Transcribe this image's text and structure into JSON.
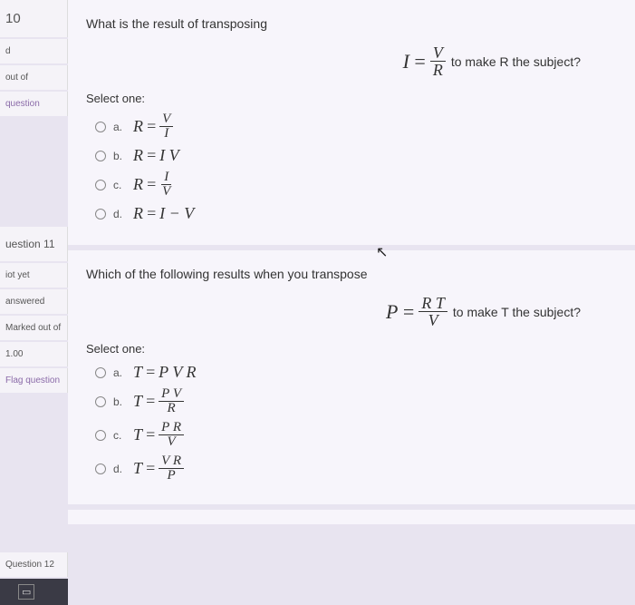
{
  "q10": {
    "number": "10",
    "status_lines": [
      "d",
      "out of"
    ],
    "flag": "question",
    "prompt": "What is the result of transposing",
    "formula_display": {
      "lhs": "I",
      "eq": "=",
      "num": "V",
      "den": "R"
    },
    "formula_suffix": "to make R the subject?",
    "select_label": "Select one:",
    "options": [
      {
        "letter": "a.",
        "lhs": "R",
        "eq": "=",
        "type": "frac",
        "num": "V",
        "den": "I"
      },
      {
        "letter": "b.",
        "lhs": "R",
        "eq": "=",
        "type": "flat",
        "rhs": "I V"
      },
      {
        "letter": "c.",
        "lhs": "R",
        "eq": "=",
        "type": "frac",
        "num": "I",
        "den": "V"
      },
      {
        "letter": "d.",
        "lhs": "R",
        "eq": "=",
        "type": "flat",
        "rhs": "I − V"
      }
    ]
  },
  "q11": {
    "number": "uestion 11",
    "status_lines": [
      "iot yet",
      "answered",
      "Marked out of",
      "1.00"
    ],
    "flag": "Flag question",
    "prompt": "Which of the following results when you transpose",
    "formula_display": {
      "lhs": "P",
      "eq": "=",
      "num": "R T",
      "den": "V"
    },
    "formula_suffix": "to make T the subject?",
    "select_label": "Select one:",
    "options": [
      {
        "letter": "a.",
        "lhs": "T",
        "eq": "=",
        "type": "flat",
        "rhs": "P V R"
      },
      {
        "letter": "b.",
        "lhs": "T",
        "eq": "=",
        "type": "frac",
        "num": "P V",
        "den": "R"
      },
      {
        "letter": "c.",
        "lhs": "T",
        "eq": "=",
        "type": "frac",
        "num": "P R",
        "den": "V"
      },
      {
        "letter": "d.",
        "lhs": "T",
        "eq": "=",
        "type": "frac",
        "num": "V R",
        "den": "P"
      }
    ]
  },
  "q12": {
    "number": "Question 12"
  },
  "toolbar": {
    "icon": "▭"
  }
}
